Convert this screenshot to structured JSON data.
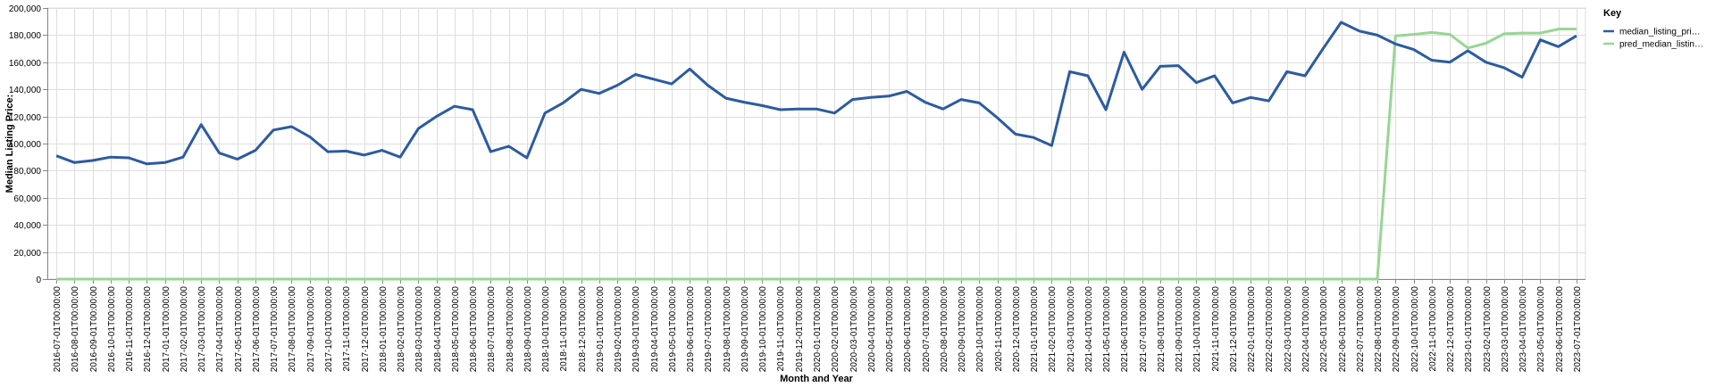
{
  "chart_data": {
    "type": "line",
    "xlabel": "Month and Year",
    "ylabel": "Median Listing Price:",
    "ylim": [
      0,
      200000
    ],
    "yticks": [
      "0",
      "20,000",
      "40,000",
      "60,000",
      "80,000",
      "100,000",
      "120,000",
      "140,000",
      "160,000",
      "180,000",
      "200,000"
    ],
    "ytick_values": [
      0,
      20000,
      40000,
      60000,
      80000,
      100000,
      120000,
      140000,
      160000,
      180000,
      200000
    ],
    "grid": true,
    "legend": {
      "title": "Key",
      "position": "top-right"
    },
    "x": [
      "2016-07-01T00:00:00",
      "2016-08-01T00:00:00",
      "2016-09-01T00:00:00",
      "2016-10-01T00:00:00",
      "2016-11-01T00:00:00",
      "2016-12-01T00:00:00",
      "2017-01-01T00:00:00",
      "2017-02-01T00:00:00",
      "2017-03-01T00:00:00",
      "2017-04-01T00:00:00",
      "2017-05-01T00:00:00",
      "2017-06-01T00:00:00",
      "2017-07-01T00:00:00",
      "2017-08-01T00:00:00",
      "2017-09-01T00:00:00",
      "2017-10-01T00:00:00",
      "2017-11-01T00:00:00",
      "2017-12-01T00:00:00",
      "2018-01-01T00:00:00",
      "2018-02-01T00:00:00",
      "2018-03-01T00:00:00",
      "2018-04-01T00:00:00",
      "2018-05-01T00:00:00",
      "2018-06-01T00:00:00",
      "2018-07-01T00:00:00",
      "2018-08-01T00:00:00",
      "2018-09-01T00:00:00",
      "2018-10-01T00:00:00",
      "2018-11-01T00:00:00",
      "2018-12-01T00:00:00",
      "2019-01-01T00:00:00",
      "2019-02-01T00:00:00",
      "2019-03-01T00:00:00",
      "2019-04-01T00:00:00",
      "2019-05-01T00:00:00",
      "2019-06-01T00:00:00",
      "2019-07-01T00:00:00",
      "2019-08-01T00:00:00",
      "2019-09-01T00:00:00",
      "2019-10-01T00:00:00",
      "2019-11-01T00:00:00",
      "2019-12-01T00:00:00",
      "2020-01-01T00:00:00",
      "2020-02-01T00:00:00",
      "2020-03-01T00:00:00",
      "2020-04-01T00:00:00",
      "2020-05-01T00:00:00",
      "2020-06-01T00:00:00",
      "2020-07-01T00:00:00",
      "2020-08-01T00:00:00",
      "2020-09-01T00:00:00",
      "2020-10-01T00:00:00",
      "2020-11-01T00:00:00",
      "2020-12-01T00:00:00",
      "2021-01-01T00:00:00",
      "2021-02-01T00:00:00",
      "2021-03-01T00:00:00",
      "2021-04-01T00:00:00",
      "2021-05-01T00:00:00",
      "2021-06-01T00:00:00",
      "2021-07-01T00:00:00",
      "2021-08-01T00:00:00",
      "2021-09-01T00:00:00",
      "2021-10-01T00:00:00",
      "2021-11-01T00:00:00",
      "2021-12-01T00:00:00",
      "2022-01-01T00:00:00",
      "2022-02-01T00:00:00",
      "2022-03-01T00:00:00",
      "2022-04-01T00:00:00",
      "2022-05-01T00:00:00",
      "2022-06-01T00:00:00",
      "2022-07-01T00:00:00",
      "2022-08-01T00:00:00",
      "2022-09-01T00:00:00",
      "2022-10-01T00:00:00",
      "2022-11-01T00:00:00",
      "2022-12-01T00:00:00",
      "2023-01-01T00:00:00",
      "2023-02-01T00:00:00",
      "2023-03-01T00:00:00",
      "2023-04-01T00:00:00",
      "2023-05-01T00:00:00",
      "2023-06-01T00:00:00",
      "2023-07-01T00:00:00"
    ],
    "series": [
      {
        "name": "median_listing_pri…",
        "color": "#2c5ba0",
        "values": [
          91000,
          86000,
          87500,
          90000,
          89500,
          85000,
          86000,
          90000,
          114000,
          93000,
          88500,
          95000,
          110000,
          112500,
          105000,
          94000,
          94500,
          91500,
          95000,
          90000,
          111000,
          120000,
          127500,
          125000,
          94000,
          98000,
          89500,
          122500,
          130000,
          140000,
          137000,
          143000,
          151000,
          147500,
          144000,
          155000,
          143000,
          133500,
          130500,
          128000,
          125000,
          125500,
          125500,
          122500,
          132500,
          134000,
          135000,
          138500,
          130500,
          125500,
          132500,
          130000,
          119000,
          107000,
          104500,
          98500,
          153000,
          150000,
          125000,
          167500,
          140000,
          157000,
          157500,
          145000,
          150000,
          130000,
          134000,
          131500,
          153000,
          150000,
          170000,
          189500,
          183000,
          180000,
          173500,
          169500,
          161500,
          160000,
          168500,
          160000,
          156000,
          149000,
          176500,
          171500,
          179500
        ]
      },
      {
        "name": "pred_median_listin…",
        "color": "#98d594",
        "values": [
          0,
          0,
          0,
          0,
          0,
          0,
          0,
          0,
          0,
          0,
          0,
          0,
          0,
          0,
          0,
          0,
          0,
          0,
          0,
          0,
          0,
          0,
          0,
          0,
          0,
          0,
          0,
          0,
          0,
          0,
          0,
          0,
          0,
          0,
          0,
          0,
          0,
          0,
          0,
          0,
          0,
          0,
          0,
          0,
          0,
          0,
          0,
          0,
          0,
          0,
          0,
          0,
          0,
          0,
          0,
          0,
          0,
          0,
          0,
          0,
          0,
          0,
          0,
          0,
          0,
          0,
          0,
          0,
          0,
          0,
          0,
          0,
          0,
          0,
          179500,
          180500,
          182000,
          180500,
          170500,
          174000,
          181000,
          181500,
          181500,
          184500,
          184500
        ]
      }
    ]
  }
}
